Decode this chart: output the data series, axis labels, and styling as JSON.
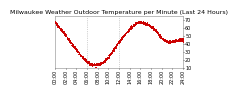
{
  "title": "Milwaukee Weather Outdoor Temperature per Minute (Last 24 Hours)",
  "line_color": "#cc0000",
  "bg_color": "#ffffff",
  "grid_color": "#cccccc",
  "ylim": [
    10,
    75
  ],
  "xlim": [
    0,
    1440
  ],
  "yticks": [
    10,
    20,
    30,
    40,
    50,
    60,
    70
  ],
  "ytick_labels": [
    "10",
    "20",
    "30",
    "40",
    "50",
    "60",
    "70"
  ],
  "curve_x": [
    0,
    50,
    100,
    150,
    200,
    250,
    300,
    350,
    400,
    450,
    500,
    550,
    600,
    650,
    700,
    750,
    800,
    850,
    900,
    950,
    1000,
    1050,
    1100,
    1150,
    1200,
    1250,
    1300,
    1350,
    1400,
    1440
  ],
  "curve_y": [
    67,
    60,
    53,
    46,
    38,
    31,
    24,
    19,
    15,
    14,
    15,
    18,
    24,
    32,
    40,
    47,
    54,
    60,
    65,
    67,
    66,
    64,
    60,
    54,
    47,
    43,
    43,
    44,
    45,
    45
  ],
  "vline_positions": [
    360,
    720
  ],
  "vline_color": "#aaaaaa",
  "title_fontsize": 4.5,
  "tick_fontsize": 3.5,
  "marker_size": 0.5,
  "xtick_every": 120,
  "noise_std": 0.9
}
